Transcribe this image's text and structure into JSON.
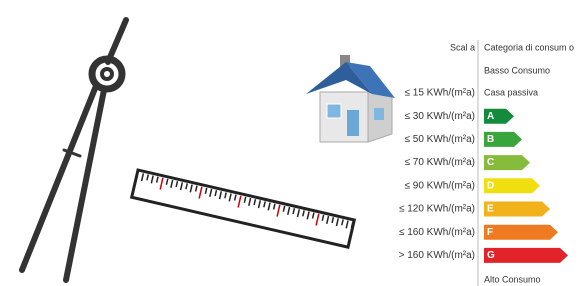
{
  "header": {
    "scale_label": "Scal a",
    "category_label": "Categoria di consum o"
  },
  "low_label": "Basso Consumo",
  "high_label": "Alto Consumo",
  "rows": [
    {
      "threshold": "≤ 15 KWh/(m²a)",
      "class": "Casa passiva"
    },
    {
      "threshold": "≤ 30 KWh/(m²a)",
      "class": "A"
    },
    {
      "threshold": "≤ 50 KWh/(m²a)",
      "class": "B"
    },
    {
      "threshold": "≤ 70 KWh/(m²a)",
      "class": "C"
    },
    {
      "threshold": "≤ 90 KWh/(m²a)",
      "class": "D"
    },
    {
      "threshold": "≤ 120 KWh/(m²a)",
      "class": "E"
    },
    {
      "threshold": "≤ 160 KWh/(m²a)",
      "class": "F"
    },
    {
      "threshold": "> 160 KWh/(m²a)",
      "class": "G"
    }
  ]
}
